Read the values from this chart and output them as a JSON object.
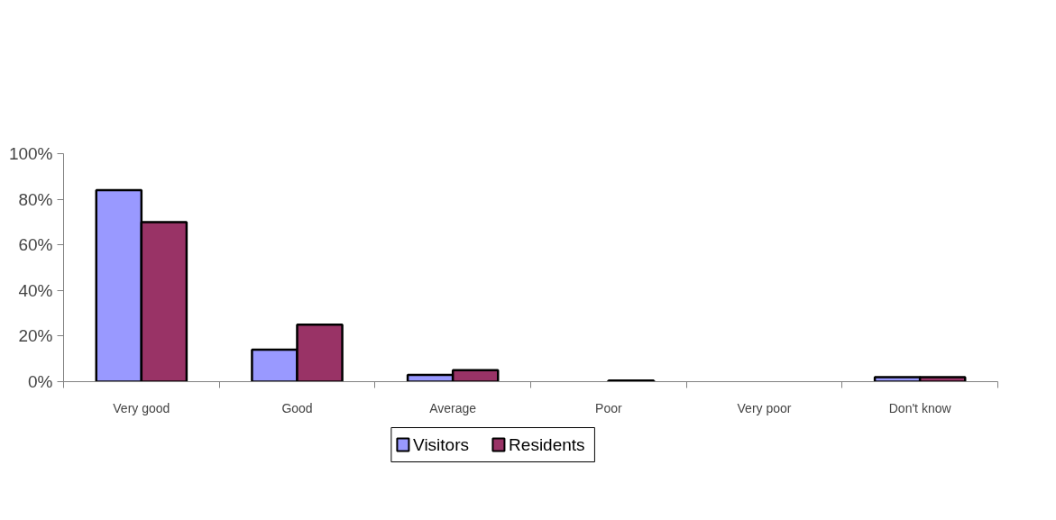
{
  "chart_data": {
    "type": "bar",
    "categories": [
      "Very good",
      "Good",
      "Average",
      "Poor",
      "Very poor",
      "Don't know"
    ],
    "series": [
      {
        "name": "Visitors",
        "color": "#9999ff",
        "values": [
          84,
          14,
          3,
          0,
          0,
          2
        ]
      },
      {
        "name": "Residents",
        "color": "#993366",
        "values": [
          70,
          25,
          5,
          0.5,
          0,
          2
        ]
      }
    ],
    "ylim": [
      0,
      100
    ],
    "yticks": [
      {
        "value": 0,
        "label": "0%"
      },
      {
        "value": 20,
        "label": "20%"
      },
      {
        "value": 40,
        "label": "40%"
      },
      {
        "value": 60,
        "label": "60%"
      },
      {
        "value": 80,
        "label": "80%"
      },
      {
        "value": 100,
        "label": "100%"
      }
    ],
    "grid": false,
    "legend": "bottom"
  }
}
